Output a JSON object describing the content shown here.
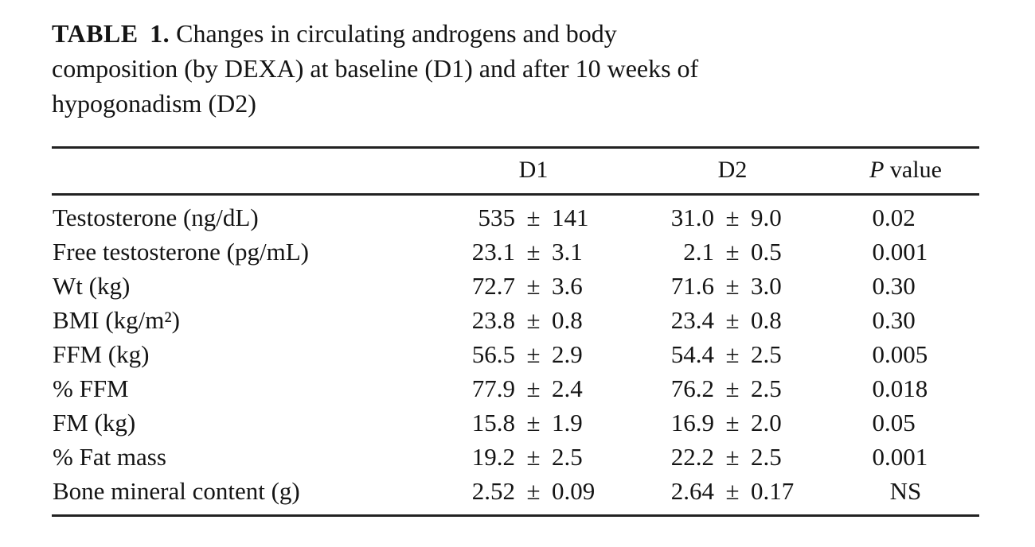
{
  "title": {
    "label": "TABLE 1.",
    "lines": [
      "Changes in circulating androgens and body",
      "composition (by DEXA) at baseline (D1) and after 10 weeks of",
      "hypogonadism (D2)"
    ]
  },
  "table": {
    "pm": "±",
    "columns": {
      "label": "",
      "d1": "D1",
      "d2": "D2",
      "p_italic": "P",
      "p_rest": " value"
    },
    "rows": [
      {
        "label": "Testosterone (ng/dL)",
        "d1_mean": "535",
        "d1_sd": "141",
        "d2_mean": "31.0",
        "d2_sd": "9.0",
        "p": "0.02"
      },
      {
        "label": "Free testosterone (pg/mL)",
        "d1_mean": "23.1",
        "d1_sd": "3.1",
        "d2_mean": "2.1",
        "d2_sd": "0.5",
        "p": "0.001"
      },
      {
        "label": "Wt (kg)",
        "d1_mean": "72.7",
        "d1_sd": "3.6",
        "d2_mean": "71.6",
        "d2_sd": "3.0",
        "p": "0.30"
      },
      {
        "label": "BMI (kg/m²)",
        "d1_mean": "23.8",
        "d1_sd": "0.8",
        "d2_mean": "23.4",
        "d2_sd": "0.8",
        "p": "0.30"
      },
      {
        "label": "FFM (kg)",
        "d1_mean": "56.5",
        "d1_sd": "2.9",
        "d2_mean": "54.4",
        "d2_sd": "2.5",
        "p": "0.005"
      },
      {
        "label": "% FFM",
        "d1_mean": "77.9",
        "d1_sd": "2.4",
        "d2_mean": "76.2",
        "d2_sd": "2.5",
        "p": "0.018"
      },
      {
        "label": "FM (kg)",
        "d1_mean": "15.8",
        "d1_sd": "1.9",
        "d2_mean": "16.9",
        "d2_sd": "2.0",
        "p": "0.05"
      },
      {
        "label": "% Fat mass",
        "d1_mean": "19.2",
        "d1_sd": "2.5",
        "d2_mean": "22.2",
        "d2_sd": "2.5",
        "p": "0.001"
      },
      {
        "label": "Bone mineral content (g)",
        "d1_mean": "2.52",
        "d1_sd": "0.09",
        "d2_mean": "2.64",
        "d2_sd": "0.17",
        "p": "NS"
      }
    ]
  },
  "colors": {
    "text": "#141414",
    "rule": "#222222",
    "background": "#ffffff"
  }
}
